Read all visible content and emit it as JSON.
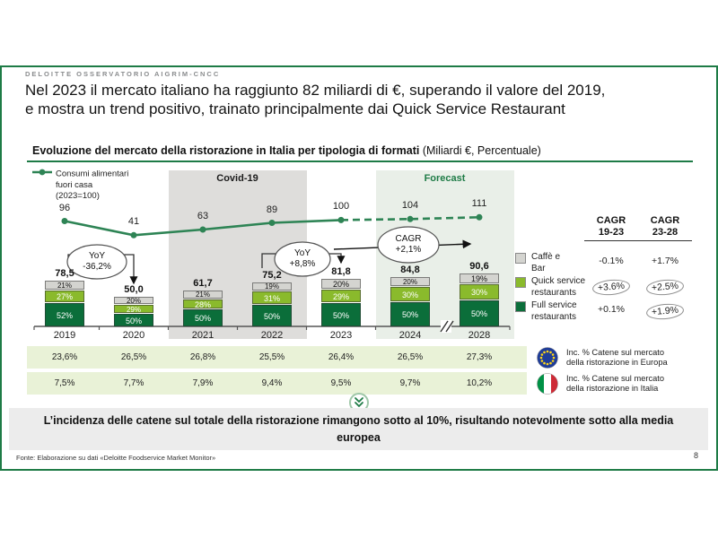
{
  "slide": {
    "eyebrow": "DELOITTE OSSERVATORIO AIGRIM-CNCC",
    "title_line1": "Nel 2023 il mercato italiano ha raggiunto 82 miliardi di €, superando il valore del 2019,",
    "title_line2": "e mostra un trend positivo, trainato principalmente dai Quick Service Restaurant",
    "chart_header_bold": "Evoluzione del mercato della ristorazione in Italia per tipologia di formati",
    "chart_header_normal": " (Miliardi €, Percentuale)",
    "callout": "L’incidenza delle catene sul totale della ristorazione rimangono sotto al 10%, risultando notevolmente sotto alla media europea",
    "footer_source": "Fonte: Elaborazione su dati «Deloitte Foodservice Market Monitor»",
    "page_number": "8"
  },
  "colors": {
    "accent_green": "#1e7b46",
    "line_green": "#2e8455",
    "dark_green": "#0b6e3a",
    "bright_green": "#8aba2c",
    "gray_segment": "#d4d4d0",
    "covid_band": "#dedddb",
    "forecast_band": "#e9efe8",
    "row_band": "#e9f2d7",
    "callout_bg": "#ececec"
  },
  "chart_data": {
    "type": "bar+line",
    "title": "Evoluzione del mercato della ristorazione in Italia per tipologia di formati (Miliardi €, Percentuale)",
    "categories": [
      "2019",
      "2020",
      "2021",
      "2022",
      "2023",
      "2024",
      "2028"
    ],
    "axis_break_between": [
      "2024",
      "2028"
    ],
    "line_series": {
      "name": "Consumi alimentari fuori casa (2023=100)",
      "legend_lines": [
        "Consumi alimentari",
        "fuori casa",
        "(2023=100)"
      ],
      "values": [
        96,
        41,
        63,
        89,
        100,
        104,
        111
      ],
      "dashed_from": "2023",
      "color": "#2e8455"
    },
    "bar_totals": [
      78.5,
      50.0,
      61.7,
      75.2,
      81.8,
      84.8,
      90.6
    ],
    "bar_total_labels": [
      "78,5",
      "50,0",
      "61,7",
      "75,2",
      "81,8",
      "84,8",
      "90,6"
    ],
    "series": [
      {
        "name": "Caffè e Bar",
        "color": "#d4d4d0",
        "text_color": "#111111",
        "labels": [
          "21%",
          "20%",
          "21%",
          "19%",
          "20%",
          "20%",
          "19%"
        ],
        "values": [
          21,
          20,
          21,
          19,
          20,
          20,
          19
        ]
      },
      {
        "name": "Quick service restaurants",
        "color": "#8aba2c",
        "text_color": "#ffffff",
        "labels": [
          "27%",
          "29%",
          "28%",
          "31%",
          "29%",
          "30%",
          "30%"
        ],
        "values": [
          27,
          29,
          28,
          31,
          29,
          30,
          30
        ]
      },
      {
        "name": "Full service restaurants",
        "color": "#0b6e3a",
        "text_color": "#ffffff",
        "labels": [
          "52%",
          "50%",
          "50%",
          "50%",
          "50%",
          "50%",
          "50%"
        ],
        "values": [
          52,
          50,
          50,
          50,
          50,
          50,
          50
        ]
      }
    ],
    "bands": [
      {
        "label": "Covid-19",
        "from": "2021",
        "to": "2022",
        "style": "gray"
      },
      {
        "label": "Forecast",
        "from": "2024",
        "to": "2028",
        "style": "green"
      }
    ],
    "annotations": [
      {
        "id": "yoy-2020",
        "lines": [
          "YoY",
          "-36,2%"
        ]
      },
      {
        "id": "yoy-2023",
        "lines": [
          "YoY",
          "+8,8%"
        ]
      },
      {
        "id": "cagr-24-28",
        "lines": [
          "CAGR",
          "+2,1%"
        ]
      }
    ],
    "cagr_table": {
      "col_headers": [
        [
          "CAGR",
          "19-23"
        ],
        [
          "CAGR",
          "23-28"
        ]
      ],
      "rows": [
        {
          "legend_lines": [
            "Caffè e",
            "Bar"
          ],
          "swatch": "#d4d4d0",
          "v1": "-0.1%",
          "v2": "+1.7%",
          "c1": false,
          "c2": false
        },
        {
          "legend_lines": [
            "Quick service",
            "restaurants"
          ],
          "swatch": "#8aba2c",
          "v1": "+3.6%",
          "v2": "+2.5%",
          "c1": true,
          "c2": true
        },
        {
          "legend_lines": [
            "Full service",
            "restaurants"
          ],
          "swatch": "#0b6e3a",
          "v1": "+0.1%",
          "v2": "+1.9%",
          "c1": false,
          "c2": true
        }
      ]
    },
    "bottom_rows": [
      {
        "flag": "eu",
        "values": [
          "23,6%",
          "26,5%",
          "26,8%",
          "25,5%",
          "26,4%",
          "26,5%",
          "27,3%"
        ],
        "label_lines": [
          "Inc. % Catene sul mercato",
          "della ristorazione in Europa"
        ]
      },
      {
        "flag": "italy",
        "values": [
          "7,5%",
          "7,7%",
          "7,9%",
          "9,4%",
          "9,5%",
          "9,7%",
          "10,2%"
        ],
        "label_lines": [
          "Inc. % Catene sul mercato",
          "della ristorazione in Italia"
        ]
      }
    ]
  }
}
